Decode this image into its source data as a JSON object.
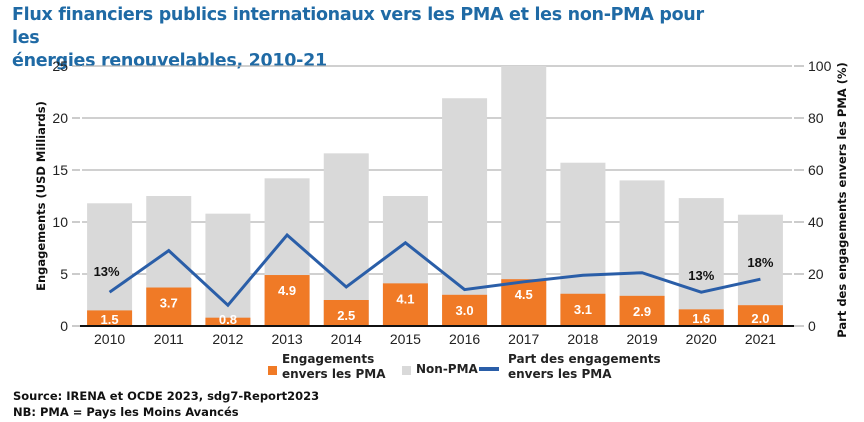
{
  "chart_data": {
    "type": "bar",
    "title": "Flux financiers publics internationaux vers les PMA et les non-PMA pour les énergies renouvelables, 2010-21",
    "categories": [
      "2010",
      "2011",
      "2012",
      "2013",
      "2014",
      "2015",
      "2016",
      "2017",
      "2018",
      "2019",
      "2020",
      "2021"
    ],
    "series": [
      {
        "name": "Engagements envers les PMA",
        "kind": "bar",
        "axis": "left",
        "color": "#f07a26",
        "values": [
          1.5,
          3.7,
          0.8,
          4.9,
          2.5,
          4.1,
          3.0,
          4.5,
          3.1,
          2.9,
          1.6,
          2.0
        ],
        "labels": [
          "1.5",
          "3.7",
          "0.8",
          "4.9",
          "2.5",
          "4.1",
          "3.0",
          "4.5",
          "3.1",
          "2.9",
          "1.6",
          "2.0"
        ]
      },
      {
        "name": "Non-PMA",
        "kind": "bar-total",
        "axis": "left",
        "color": "#d9d9d9",
        "note": "gray bar total height (PMA + non-PMA), estimated",
        "totals": [
          11.8,
          12.5,
          10.8,
          14.2,
          16.6,
          12.5,
          21.9,
          25.0,
          15.7,
          14.0,
          12.3,
          10.7
        ]
      },
      {
        "name": "Part des engagements envers les PMA",
        "kind": "line",
        "axis": "right",
        "color": "#2a5ea8",
        "values": [
          13,
          29,
          8,
          35,
          15,
          32,
          14,
          17,
          19.5,
          20.5,
          13,
          18
        ]
      }
    ],
    "annotations": [
      {
        "category": "2010",
        "text": "13%"
      },
      {
        "category": "2020",
        "text": "13%"
      },
      {
        "category": "2021",
        "text": "18%"
      }
    ],
    "ylabel": "Engagements (USD Milliards)",
    "ylim": [
      0,
      25
    ],
    "yticks": [
      "0",
      "5",
      "10",
      "15",
      "20",
      "25"
    ],
    "y2label": "Part des engagements envers les PMA (%)",
    "y2lim": [
      0,
      100
    ],
    "y2ticks": [
      "0",
      "20",
      "40",
      "60",
      "80",
      "100"
    ],
    "grid": true,
    "legend_position": "bottom",
    "legend": [
      "Engagements envers les PMA",
      "Non-PMA",
      "Part des engagements envers les PMA"
    ]
  },
  "title_line1": "Flux financiers publics internationaux vers les PMA et les non-PMA pour les",
  "title_line2": "énergies renouvelables, 2010-21",
  "legend": {
    "pma_line1": "Engagements",
    "pma_line2": "envers les PMA",
    "nonpma": "Non-PMA",
    "share_line1": "Part des engagements",
    "share_line2": "envers les PMA"
  },
  "footer": {
    "source": "Source: IRENA et OCDE 2023, sdg7-Report2023",
    "note": "NB: PMA = Pays les Moins Avancés"
  }
}
